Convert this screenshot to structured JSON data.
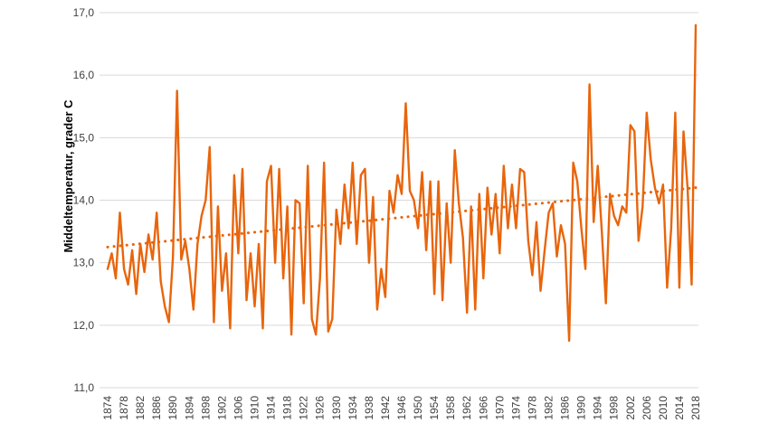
{
  "chart_data": {
    "type": "line",
    "title": "",
    "xlabel": "",
    "ylabel": "Middeltemperatur, grader C",
    "ylim": [
      11.0,
      17.0
    ],
    "y_tick_values": [
      17,
      16,
      15,
      14,
      13,
      12,
      11
    ],
    "y_tick_labels": [
      "17,0",
      "16,0",
      "15,0",
      "14,0",
      "13,0",
      "12,0",
      "11,0"
    ],
    "x_start_year": 1874,
    "x_end_year": 2018,
    "x_tick_step": 4,
    "x_tick_labels": [
      "1874",
      "1878",
      "1882",
      "1886",
      "1890",
      "1894",
      "1898",
      "1902",
      "1906",
      "1910",
      "1914",
      "1918",
      "1922",
      "1926",
      "1930",
      "1934",
      "1938",
      "1942",
      "1946",
      "1950",
      "1954",
      "1958",
      "1962",
      "1966",
      "1970",
      "1974",
      "1978",
      "1982",
      "1986",
      "1990",
      "1994",
      "1998",
      "2002",
      "2006",
      "2010",
      "2014",
      "2018"
    ],
    "grid": "horizontal",
    "legend": "none",
    "colors": {
      "series_line": "#e8650c",
      "trend_line": "#e8650c",
      "gridline": "#d9d9d9",
      "tick_text": "#3f3f3f",
      "background": "#ffffff"
    },
    "series": [
      {
        "name": "Middeltemperatur",
        "style": "solid",
        "values": [
          12.9,
          13.15,
          12.75,
          13.8,
          12.9,
          12.65,
          13.2,
          12.5,
          13.3,
          12.85,
          13.45,
          13.05,
          13.8,
          12.7,
          12.3,
          12.05,
          13.1,
          15.75,
          13.05,
          13.35,
          12.9,
          12.25,
          13.3,
          13.75,
          14.0,
          14.85,
          12.05,
          13.9,
          12.55,
          13.15,
          11.95,
          14.4,
          13.15,
          14.5,
          12.4,
          13.15,
          12.3,
          13.3,
          11.95,
          14.3,
          14.55,
          13.0,
          14.5,
          12.75,
          13.9,
          11.85,
          14.0,
          13.95,
          12.35,
          14.55,
          12.1,
          11.85,
          12.75,
          14.6,
          11.9,
          12.1,
          13.85,
          13.3,
          14.25,
          13.55,
          14.6,
          13.3,
          14.4,
          14.5,
          13.0,
          14.05,
          12.25,
          12.9,
          12.45,
          14.15,
          13.8,
          14.4,
          14.1,
          15.55,
          14.15,
          14.0,
          13.55,
          14.45,
          13.2,
          14.3,
          12.5,
          14.3,
          12.4,
          13.95,
          13.0,
          14.8,
          13.95,
          13.4,
          12.2,
          13.9,
          12.25,
          14.1,
          12.75,
          14.2,
          13.45,
          14.1,
          13.15,
          14.55,
          13.55,
          14.25,
          13.55,
          14.5,
          14.45,
          13.35,
          12.8,
          13.65,
          12.55,
          13.2,
          13.8,
          13.95,
          13.1,
          13.6,
          13.3,
          11.75,
          14.6,
          14.3,
          13.55,
          12.9,
          15.85,
          13.65,
          14.55,
          13.5,
          12.35,
          14.1,
          13.75,
          13.6,
          13.9,
          13.8,
          15.2,
          15.1,
          13.35,
          13.9,
          15.4,
          14.65,
          14.2,
          13.95,
          14.25,
          12.6,
          13.55,
          15.4,
          12.6,
          15.1,
          14.2,
          12.65,
          16.8
        ]
      },
      {
        "name": "Trend",
        "style": "dotted",
        "trend_start_value": 13.25,
        "trend_end_value": 14.2
      }
    ]
  }
}
